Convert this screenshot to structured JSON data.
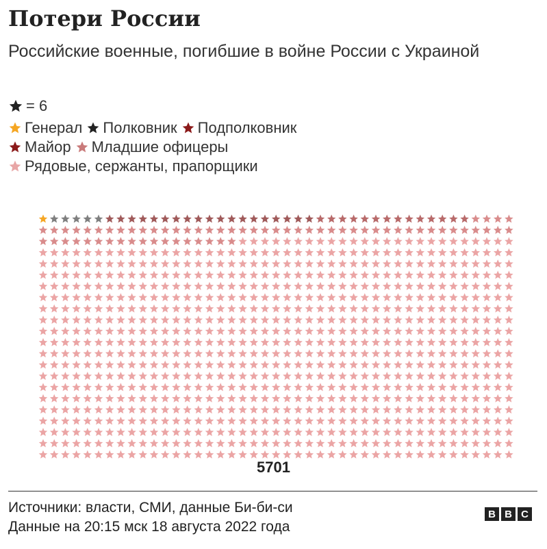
{
  "title": "Потери России",
  "subtitle": "Российские военные, погибшие в войне России с Украиной",
  "legend": {
    "scale_text": "= 6",
    "items": [
      {
        "label": "Генерал",
        "color": "#f5a623"
      },
      {
        "label": "Полковник",
        "color": "#222222"
      },
      {
        "label": "Подполковник",
        "color": "#8b1a1a"
      },
      {
        "label": "Майор",
        "color": "#8b1a1a"
      },
      {
        "label": "Младшие офицеры",
        "color": "#c97a7a"
      },
      {
        "label": "Рядовые, сержанты, прапорщики",
        "color": "#e8a6a6"
      }
    ]
  },
  "chart_data": {
    "type": "pictogram",
    "unit_per_icon": 6,
    "total_label": "5701",
    "categories": [
      "Генерал",
      "Полковник",
      "Подполковник",
      "Майор",
      "Младшие офицеры",
      "Рядовые, сержанты, прапорщики"
    ],
    "icon_counts": [
      1,
      5,
      19,
      14,
      65,
      846
    ],
    "colors": [
      "#f5a623",
      "#7f7f7f",
      "#a05a5a",
      "#b86a6a",
      "#d98c8c",
      "#eba5a5"
    ]
  },
  "footer": {
    "sources": "Источники: власти, СМИ, данные Би-би-си",
    "date": "Данные на 20:15 мск 18 августа 2022 года"
  },
  "brand": [
    "B",
    "B",
    "C"
  ]
}
